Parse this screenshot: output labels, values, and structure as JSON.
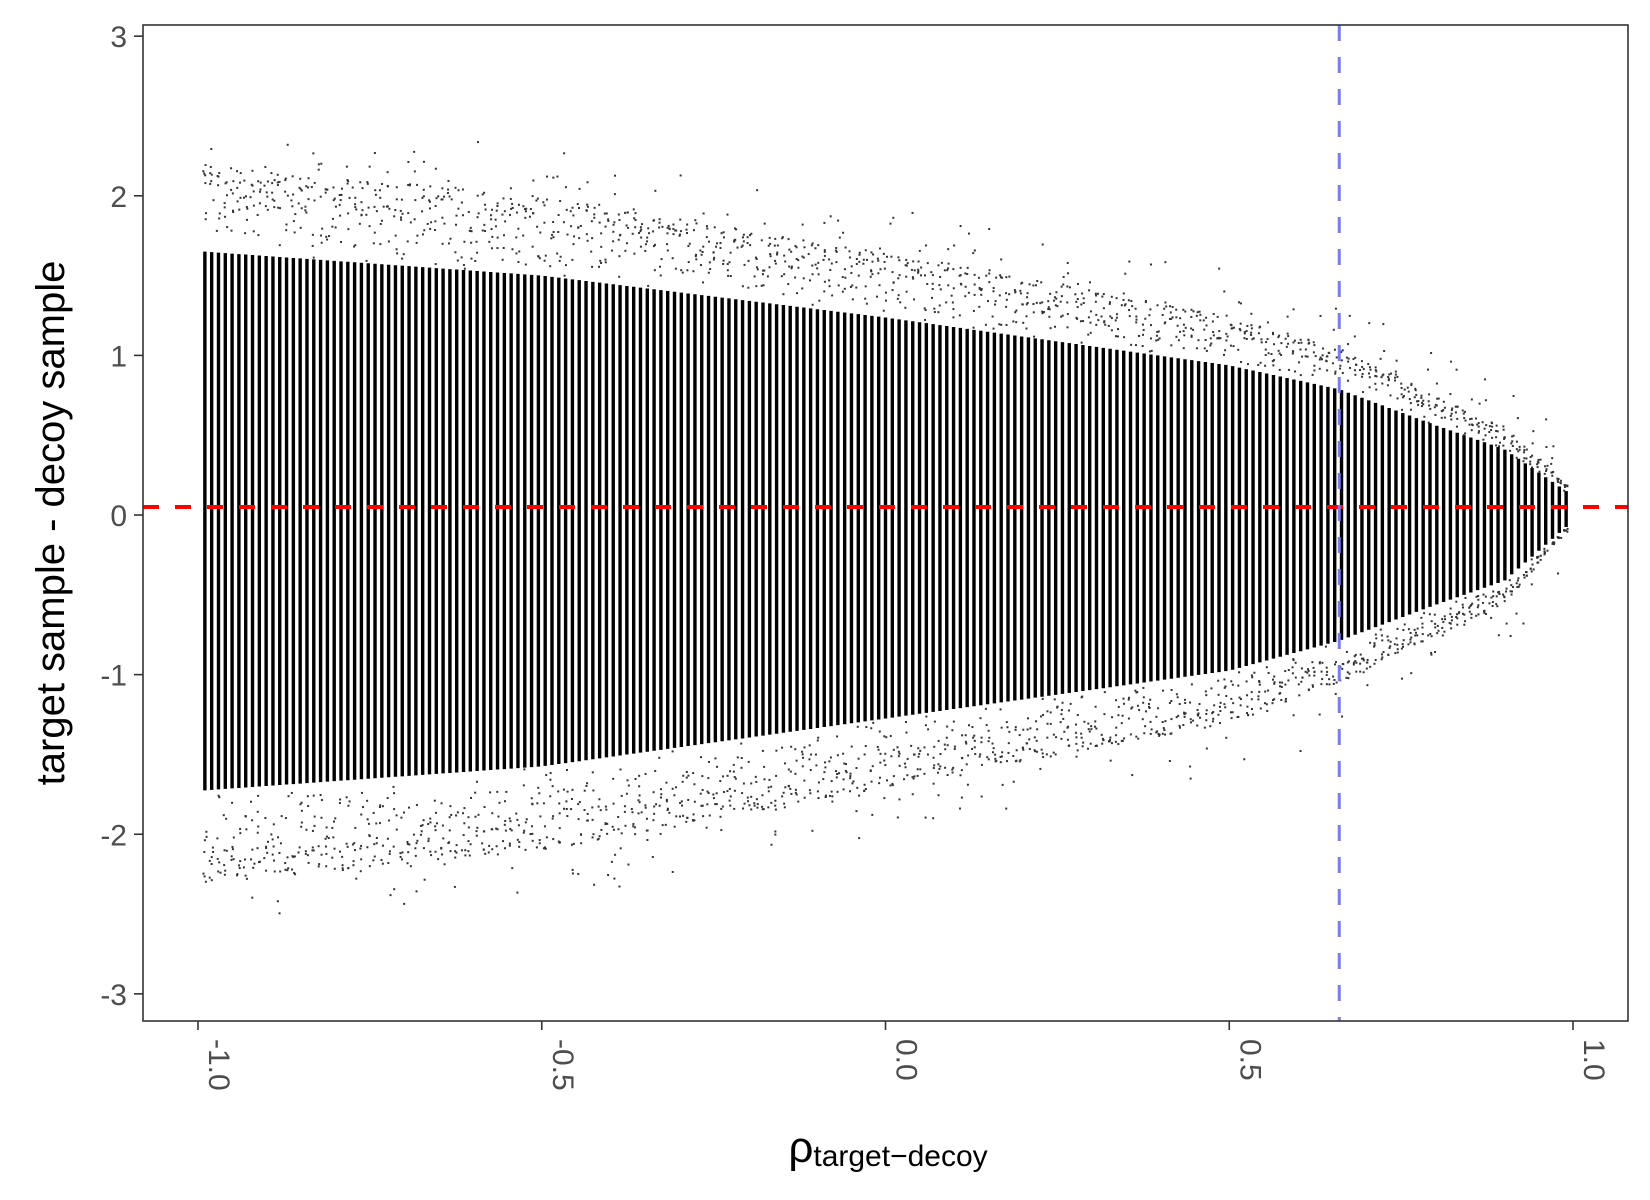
{
  "chart_data": {
    "type": "scatter",
    "title": "",
    "xlabel": {
      "symbol": "ρ",
      "subscript": "target−decoy"
    },
    "ylabel": "target sample - decoy sample",
    "xlim": [
      -1.08,
      1.08
    ],
    "ylim": [
      -3.17,
      3.07
    ],
    "x_ticks": [
      -1.0,
      -0.5,
      0.0,
      0.5,
      1.0
    ],
    "x_tick_labels": [
      "-1.0",
      "-0.5",
      "0.0",
      "0.5",
      "1.0"
    ],
    "y_ticks": [
      3,
      2,
      1,
      0,
      -1,
      -2,
      -3
    ],
    "y_tick_labels": [
      "3",
      "2",
      "1",
      "0",
      "-1",
      "-2",
      "-3"
    ],
    "grid": false,
    "legend": "none",
    "point_cloud": {
      "x_range": [
        -0.99,
        0.99
      ],
      "x_step": 0.0099,
      "envelope_upper": [
        [
          -0.99,
          2.2
        ],
        [
          -0.5,
          2.0
        ],
        [
          0.0,
          1.65
        ],
        [
          0.5,
          1.25
        ],
        [
          0.66,
          1.05
        ],
        [
          0.8,
          0.75
        ],
        [
          0.9,
          0.55
        ],
        [
          0.99,
          0.2
        ]
      ],
      "envelope_lower": [
        [
          -0.99,
          -2.3
        ],
        [
          -0.5,
          -2.1
        ],
        [
          0.0,
          -1.7
        ],
        [
          0.5,
          -1.3
        ],
        [
          0.66,
          -1.05
        ],
        [
          0.8,
          -0.75
        ],
        [
          0.9,
          -0.55
        ],
        [
          0.99,
          -0.1
        ]
      ],
      "dense_core_fraction": 0.75,
      "color": "#000000"
    },
    "reference_lines": [
      {
        "orientation": "horizontal",
        "value": 0.05,
        "color": "#ff0000",
        "style": "dashed"
      },
      {
        "orientation": "vertical",
        "value": 0.66,
        "color": "#7b7bee",
        "style": "dashed"
      }
    ]
  }
}
